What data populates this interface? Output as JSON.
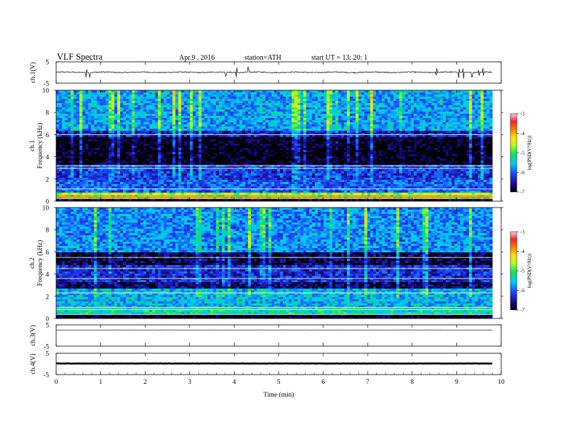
{
  "header": {
    "title": "VLF  Spectra",
    "date": "Apr.9  , 2016",
    "station": "station=ATH",
    "start": "start  UT  =   13: 20: 1"
  },
  "chart_data": [
    {
      "type": "line",
      "ylabel": "ch.1(V)",
      "ylim": [
        -5,
        5
      ],
      "yticks": [
        "5",
        "-5"
      ],
      "xlim": [
        0,
        10
      ],
      "trace": {
        "baseline": 0.1,
        "noise": 0.25,
        "spike_times": [
          0.68,
          0.75,
          3.82,
          4.05,
          4.32,
          8.55,
          9.05,
          9.15,
          9.35,
          9.5,
          9.6
        ],
        "spike_amp": 1.8
      }
    },
    {
      "type": "heatmap",
      "ylabel": "Frequency  (kHz)",
      "channel_label": "ch.1",
      "ylim": [
        0,
        10
      ],
      "yticks": [
        "0",
        "2",
        "4",
        "6",
        "8",
        "10"
      ],
      "xlim": [
        0,
        10
      ],
      "data_end_min": 9.8,
      "colorbar": {
        "ticks": [
          "-3",
          "-4",
          "-5",
          "-6",
          "-7"
        ],
        "label": "log(PSD(V²/Hz))",
        "range": [
          -7,
          -3
        ]
      },
      "bands": [
        {
          "f": [
            0,
            0.25
          ],
          "level": -6.8
        },
        {
          "f": [
            0.25,
            0.7
          ],
          "level": -4.6
        },
        {
          "f": [
            0.7,
            2.0
          ],
          "level": -6.0
        },
        {
          "f": [
            2.0,
            3.2
          ],
          "level": -6.2
        },
        {
          "f": [
            3.2,
            5.8
          ],
          "level": -7.0
        },
        {
          "f": [
            5.8,
            6.4
          ],
          "level": -6.4
        },
        {
          "f": [
            6.4,
            10
          ],
          "level": -5.7
        }
      ],
      "lines_khz": [
        0.3,
        0.45,
        1.1,
        2.95,
        3.2,
        6.0
      ]
    },
    {
      "type": "heatmap",
      "ylabel": "Frequency  (kHz)",
      "channel_label": "ch.2",
      "ylim": [
        0,
        10
      ],
      "yticks": [
        "0",
        "2",
        "4",
        "6",
        "8",
        "10"
      ],
      "xlim": [
        0,
        10
      ],
      "data_end_min": 9.8,
      "colorbar": {
        "ticks": [
          "-3",
          "-4",
          "-5",
          "-6",
          "-7"
        ],
        "label": "log(PSD(V²/Hz))",
        "range": [
          -7,
          -3
        ]
      },
      "bands": [
        {
          "f": [
            0,
            0.3
          ],
          "level": -7.0
        },
        {
          "f": [
            0.3,
            1.0
          ],
          "level": -5.3
        },
        {
          "f": [
            1.0,
            2.6
          ],
          "level": -5.6
        },
        {
          "f": [
            2.6,
            3.3
          ],
          "level": -6.7
        },
        {
          "f": [
            3.3,
            4.8
          ],
          "level": -6.3
        },
        {
          "f": [
            4.8,
            6.0
          ],
          "level": -6.8
        },
        {
          "f": [
            6.0,
            10
          ],
          "level": -5.8
        }
      ],
      "lines_khz": [
        0.35,
        0.8,
        1.0,
        2.3,
        3.6,
        4.5,
        5.5
      ]
    },
    {
      "type": "line",
      "ylabel": "ch.3(V)",
      "ylim": [
        -5,
        5
      ],
      "yticks": [
        "5",
        "-5"
      ],
      "xlim": [
        0,
        10
      ],
      "trace": {
        "baseline": 2.6,
        "noise": 0.02,
        "spike_times": [],
        "spike_amp": 0
      }
    },
    {
      "type": "line",
      "ylabel": "ch.4(V)",
      "ylim": [
        -5,
        5
      ],
      "yticks": [
        "5",
        "-5"
      ],
      "xlim": [
        0,
        10
      ],
      "trace": {
        "baseline": 0.2,
        "noise": 0.08,
        "spike_times": [],
        "spike_amp": 0,
        "thick": true
      }
    }
  ],
  "xaxis": {
    "label": "Time  (min)",
    "ticks": [
      "0",
      "1",
      "2",
      "3",
      "4",
      "5",
      "6",
      "7",
      "8",
      "9",
      "10"
    ]
  }
}
